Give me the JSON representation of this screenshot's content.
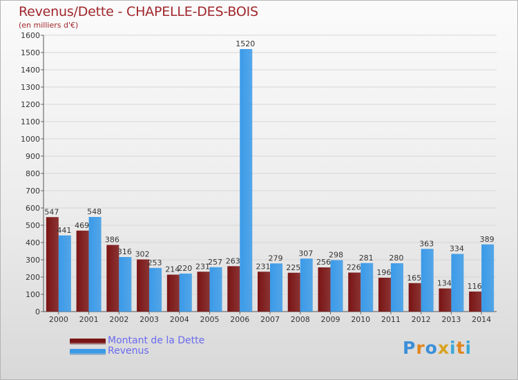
{
  "header": {
    "title": "Revenus/Dette - CHAPELLE-DES-BOIS",
    "subtitle": "(en milliers d'€)"
  },
  "chart_data": {
    "type": "bar",
    "title": "Revenus/Dette - CHAPELLE-DES-BOIS",
    "subtitle": "(en milliers d'€)",
    "xlabel": "",
    "ylabel": "",
    "ylim": [
      0,
      1600
    ],
    "yticks": [
      "0",
      "100",
      "200",
      "300",
      "400",
      "500",
      "600",
      "700",
      "800",
      "900",
      "1000",
      "1100",
      "1200",
      "1300",
      "1400",
      "1500",
      "1600"
    ],
    "grid": true,
    "legend_position": "bottom-left",
    "categories": [
      "2000",
      "2001",
      "2002",
      "2003",
      "2004",
      "2005",
      "2006",
      "2007",
      "2008",
      "2009",
      "2010",
      "2011",
      "2012",
      "2013",
      "2014"
    ],
    "series": [
      {
        "name": "Montant de la Dette",
        "color": "#7a1414",
        "values": [
          547,
          469,
          386,
          302,
          214,
          231,
          263,
          231,
          225,
          256,
          226,
          196,
          165,
          134,
          116
        ]
      },
      {
        "name": "Revenus",
        "color": "#3a9ae8",
        "values": [
          441,
          548,
          316,
          253,
          220,
          257,
          1520,
          279,
          307,
          298,
          281,
          280,
          363,
          334,
          389
        ]
      }
    ]
  },
  "legend": {
    "items": [
      {
        "label": "Montant de la Dette",
        "color": "#7a1414"
      },
      {
        "label": "Revenus",
        "color": "#3a9ae8"
      }
    ]
  },
  "brand": {
    "letters": [
      "P",
      "r",
      "o",
      "x",
      "i",
      "t",
      "i"
    ],
    "colors": [
      "#3a8fd8",
      "#e0861e",
      "#3a8fd8",
      "#d8a21e",
      "#3aa8d8",
      "#e0861e",
      "#3aa8d8"
    ]
  }
}
